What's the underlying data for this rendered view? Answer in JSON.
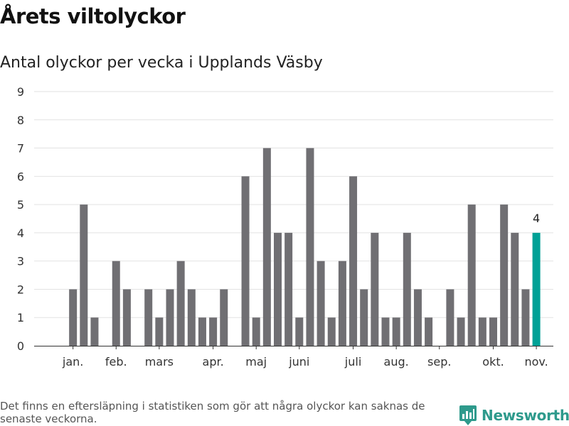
{
  "header": {
    "title": "Årets viltolyckor",
    "subtitle": "Antal olyckor per vecka i Upplands Väsby"
  },
  "footer": {
    "note": "Det finns en eftersläpning i statistiken som gör att några olyckor kan saknas de senaste veckorna.",
    "brand": "Newsworthy"
  },
  "colors": {
    "bar": "#706f73",
    "highlight": "#00a196",
    "brand": "#2e9a8c",
    "grid": "#e2e2e2"
  },
  "chart_data": {
    "type": "bar",
    "title": "Årets viltolyckor",
    "subtitle": "Antal olyckor per vecka i Upplands Väsby",
    "xlabel": "",
    "ylabel": "",
    "ylim": [
      0,
      9
    ],
    "yticks": [
      0,
      1,
      2,
      3,
      4,
      5,
      6,
      7,
      8,
      9
    ],
    "grid": true,
    "weeks": [
      1,
      2,
      3,
      4,
      5,
      6,
      7,
      8,
      9,
      10,
      11,
      12,
      13,
      14,
      15,
      16,
      17,
      18,
      19,
      20,
      21,
      22,
      23,
      24,
      25,
      26,
      27,
      28,
      29,
      30,
      31,
      32,
      33,
      34,
      35,
      36,
      37,
      38,
      39,
      40,
      41,
      42,
      43,
      44,
      45
    ],
    "values": [
      0,
      2,
      5,
      1,
      0,
      3,
      2,
      0,
      2,
      1,
      2,
      3,
      2,
      1,
      1,
      2,
      0,
      6,
      1,
      7,
      4,
      4,
      1,
      7,
      3,
      1,
      3,
      6,
      2,
      4,
      1,
      1,
      4,
      2,
      1,
      0,
      2,
      1,
      5,
      1,
      1,
      5,
      4,
      2,
      4
    ],
    "highlight_index": 44,
    "highlight_label": "4",
    "month_labels": [
      {
        "label": "jan.",
        "week": 2
      },
      {
        "label": "feb.",
        "week": 6
      },
      {
        "label": "mars",
        "week": 10
      },
      {
        "label": "apr.",
        "week": 15
      },
      {
        "label": "maj",
        "week": 19
      },
      {
        "label": "juni",
        "week": 23
      },
      {
        "label": "juli",
        "week": 28
      },
      {
        "label": "aug.",
        "week": 32
      },
      {
        "label": "sep.",
        "week": 36
      },
      {
        "label": "okt.",
        "week": 41
      },
      {
        "label": "nov.",
        "week": 45
      }
    ]
  }
}
